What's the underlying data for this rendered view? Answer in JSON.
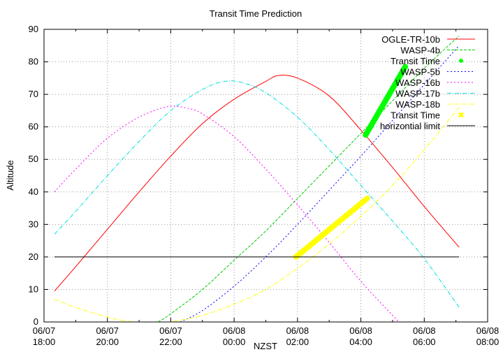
{
  "chart_data": {
    "type": "line",
    "title": "Transit Time Prediction",
    "xlabel": "NZST",
    "ylabel": "Altitude",
    "xlim_hours": [
      18,
      32
    ],
    "ylim": [
      0,
      90
    ],
    "grid": true,
    "legend_position": "top-right-inside",
    "x_ticks": [
      {
        "h": 18,
        "date": "06/07",
        "time": "18:00"
      },
      {
        "h": 20,
        "date": "06/07",
        "time": "20:00"
      },
      {
        "h": 22,
        "date": "06/07",
        "time": "22:00"
      },
      {
        "h": 24,
        "date": "06/08",
        "time": "00:00"
      },
      {
        "h": 26,
        "date": "06/08",
        "time": "02:00"
      },
      {
        "h": 28,
        "date": "06/08",
        "time": "04:00"
      },
      {
        "h": 30,
        "date": "06/08",
        "time": "06:00"
      },
      {
        "h": 32,
        "date": "06/08",
        "time": "08:00"
      }
    ],
    "y_ticks": [
      0,
      10,
      20,
      30,
      40,
      50,
      60,
      70,
      80,
      90
    ],
    "series": [
      {
        "name": "OGLE-TR-10b",
        "color": "#ff0000",
        "style": "solid",
        "kind": "line",
        "points": [
          [
            18.33,
            9.5
          ],
          [
            19,
            17
          ],
          [
            20,
            28.5
          ],
          [
            21,
            40
          ],
          [
            22,
            51
          ],
          [
            23,
            61
          ],
          [
            24,
            68.5
          ],
          [
            25,
            74
          ],
          [
            25.4,
            75.8
          ],
          [
            26,
            75
          ],
          [
            27,
            69.5
          ],
          [
            28,
            59
          ],
          [
            29,
            47.5
          ],
          [
            30,
            35.5
          ],
          [
            31.1,
            23
          ]
        ]
      },
      {
        "name": "WASP-4b",
        "color": "#00cc00",
        "style": "dashed",
        "kind": "line",
        "points": [
          [
            21.6,
            0
          ],
          [
            22,
            2.5
          ],
          [
            23,
            10
          ],
          [
            24,
            19
          ],
          [
            25,
            28
          ],
          [
            26,
            38
          ],
          [
            27,
            48
          ],
          [
            28,
            58
          ],
          [
            29,
            68
          ],
          [
            30,
            78
          ],
          [
            31.1,
            88
          ]
        ]
      },
      {
        "name": "Transit Time",
        "color": "#00ff00",
        "style": "points",
        "kind": "band",
        "points": [
          [
            28.15,
            57.5
          ],
          [
            29.4,
            78.5
          ]
        ]
      },
      {
        "name": "WASP-5b",
        "color": "#0000ff",
        "style": "dotted",
        "kind": "line",
        "points": [
          [
            22.3,
            0
          ],
          [
            23,
            3.5
          ],
          [
            24,
            11
          ],
          [
            25,
            20
          ],
          [
            26,
            30
          ],
          [
            27,
            40.5
          ],
          [
            28,
            51
          ],
          [
            29,
            62
          ],
          [
            30,
            73
          ],
          [
            31.1,
            85
          ]
        ]
      },
      {
        "name": "WASP-16b",
        "color": "#ff00ff",
        "style": "dotted",
        "kind": "line",
        "points": [
          [
            18.33,
            40
          ],
          [
            19,
            47
          ],
          [
            20,
            56.5
          ],
          [
            21,
            63
          ],
          [
            21.9,
            66.2
          ],
          [
            22.5,
            65.8
          ],
          [
            23,
            64
          ],
          [
            24,
            57
          ],
          [
            25,
            47
          ],
          [
            26,
            36
          ],
          [
            27,
            24.5
          ],
          [
            28,
            12.5
          ],
          [
            29.2,
            0
          ]
        ]
      },
      {
        "name": "WASP-17b",
        "color": "#00dddd",
        "style": "dashdot",
        "kind": "line",
        "points": [
          [
            18.33,
            27
          ],
          [
            19,
            34
          ],
          [
            20,
            45
          ],
          [
            21,
            55.5
          ],
          [
            22,
            65
          ],
          [
            23,
            71.5
          ],
          [
            23.7,
            74
          ],
          [
            24.3,
            73.5
          ],
          [
            25,
            70.5
          ],
          [
            26,
            63
          ],
          [
            27,
            53
          ],
          [
            28,
            42
          ],
          [
            29,
            31
          ],
          [
            30,
            19.5
          ],
          [
            31.1,
            4.5
          ]
        ]
      },
      {
        "name": "WASP-18b",
        "color": "#ffff00",
        "style": "dashdot",
        "kind": "line",
        "points": [
          [
            18.33,
            7
          ],
          [
            19,
            4.5
          ],
          [
            20,
            1.5
          ],
          [
            20.8,
            0
          ],
          [
            21.5,
            -0.5
          ],
          [
            22,
            0
          ],
          [
            23,
            2
          ],
          [
            24,
            5.5
          ],
          [
            25,
            10
          ],
          [
            26,
            16.5
          ],
          [
            27,
            24
          ],
          [
            28,
            32.5
          ],
          [
            29,
            42
          ],
          [
            30,
            53
          ],
          [
            31.1,
            66
          ]
        ]
      },
      {
        "name": "Transit Time",
        "color": "#ffff00",
        "style": "points",
        "kind": "band",
        "points": [
          [
            25.95,
            20
          ],
          [
            28.2,
            38
          ]
        ]
      },
      {
        "name": "horizontial limit",
        "color": "#000000",
        "style": "solid",
        "kind": "line",
        "points": [
          [
            18.33,
            20
          ],
          [
            31.1,
            20
          ]
        ]
      }
    ]
  }
}
